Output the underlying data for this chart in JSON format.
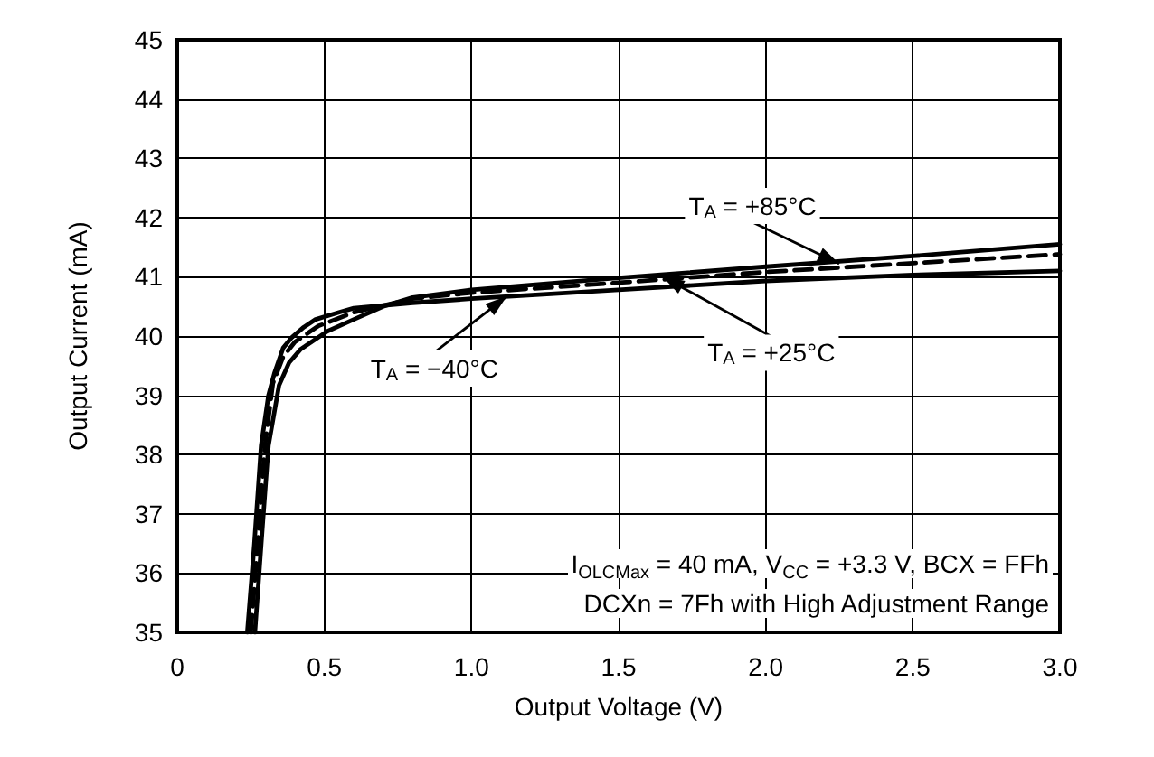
{
  "chart_data": {
    "type": "line",
    "xlabel": "Output Voltage (V)",
    "ylabel": "Output Current (mA)",
    "xlim": [
      0,
      3
    ],
    "xticks": [
      0,
      0.5,
      {
        "value": 1,
        "label": "1.0"
      },
      1.5,
      {
        "value": 2,
        "label": "2.0"
      },
      2.5,
      {
        "value": 3,
        "label": "3.0"
      }
    ],
    "ylim": [
      35,
      45
    ],
    "yticks": [
      35,
      36,
      37,
      38,
      39,
      40,
      41,
      42,
      43,
      44,
      45
    ],
    "grid": true,
    "marker": "none",
    "series": [
      {
        "color": "#000000",
        "line_style": "solid",
        "x": [
          0.238,
          0.262,
          0.285,
          0.31,
          0.33,
          0.36,
          0.39,
          0.43,
          0.47,
          0.55,
          0.6,
          0.8,
          1.0,
          1.5,
          2.0,
          2.5,
          3.0
        ],
        "values": [
          35,
          36.5,
          38.15,
          39,
          39.37,
          39.8,
          39.98,
          40.15,
          40.28,
          40.4,
          40.47,
          40.56,
          40.63,
          40.78,
          40.93,
          41.03,
          41.1
        ]
      },
      {
        "color": "#000000",
        "line_style": "dashed",
        "x": [
          0.25,
          0.275,
          0.298,
          0.325,
          0.36,
          0.4,
          0.48,
          0.6,
          0.8,
          1.0,
          1.5,
          2.0,
          2.5,
          3.0
        ],
        "values": [
          35,
          36.6,
          38.15,
          39.2,
          39.65,
          39.9,
          40.17,
          40.4,
          40.63,
          40.73,
          40.9,
          41.08,
          41.23,
          41.38
        ]
      },
      {
        "color": "#000000",
        "line_style": "solid",
        "x": [
          0.264,
          0.29,
          0.31,
          0.346,
          0.38,
          0.42,
          0.51,
          0.6,
          0.7,
          0.8,
          1.0,
          1.5,
          2.0,
          2.5,
          3.0
        ],
        "values": [
          35,
          36.8,
          38.15,
          39.17,
          39.55,
          39.78,
          40.08,
          40.28,
          40.5,
          40.65,
          40.78,
          40.98,
          41.17,
          41.35,
          41.55
        ]
      }
    ],
    "annotations": [
      {
        "text": "T$_{A}$ = +85°C",
        "x": 2.25,
        "y": 41.22
      },
      {
        "text": "T$_{A}$ = +25°C",
        "x": 1.65,
        "y": 41.0
      },
      {
        "text": "T$_{A}$ = −40°C",
        "x": 1.12,
        "y": 40.67
      },
      "I$_{OLCMax}$ = 40 mA, V$_{CC}$ = +3.3 V, BCX = FFh",
      "DCXn = 7Fh with High Adjustment Range"
    ]
  }
}
